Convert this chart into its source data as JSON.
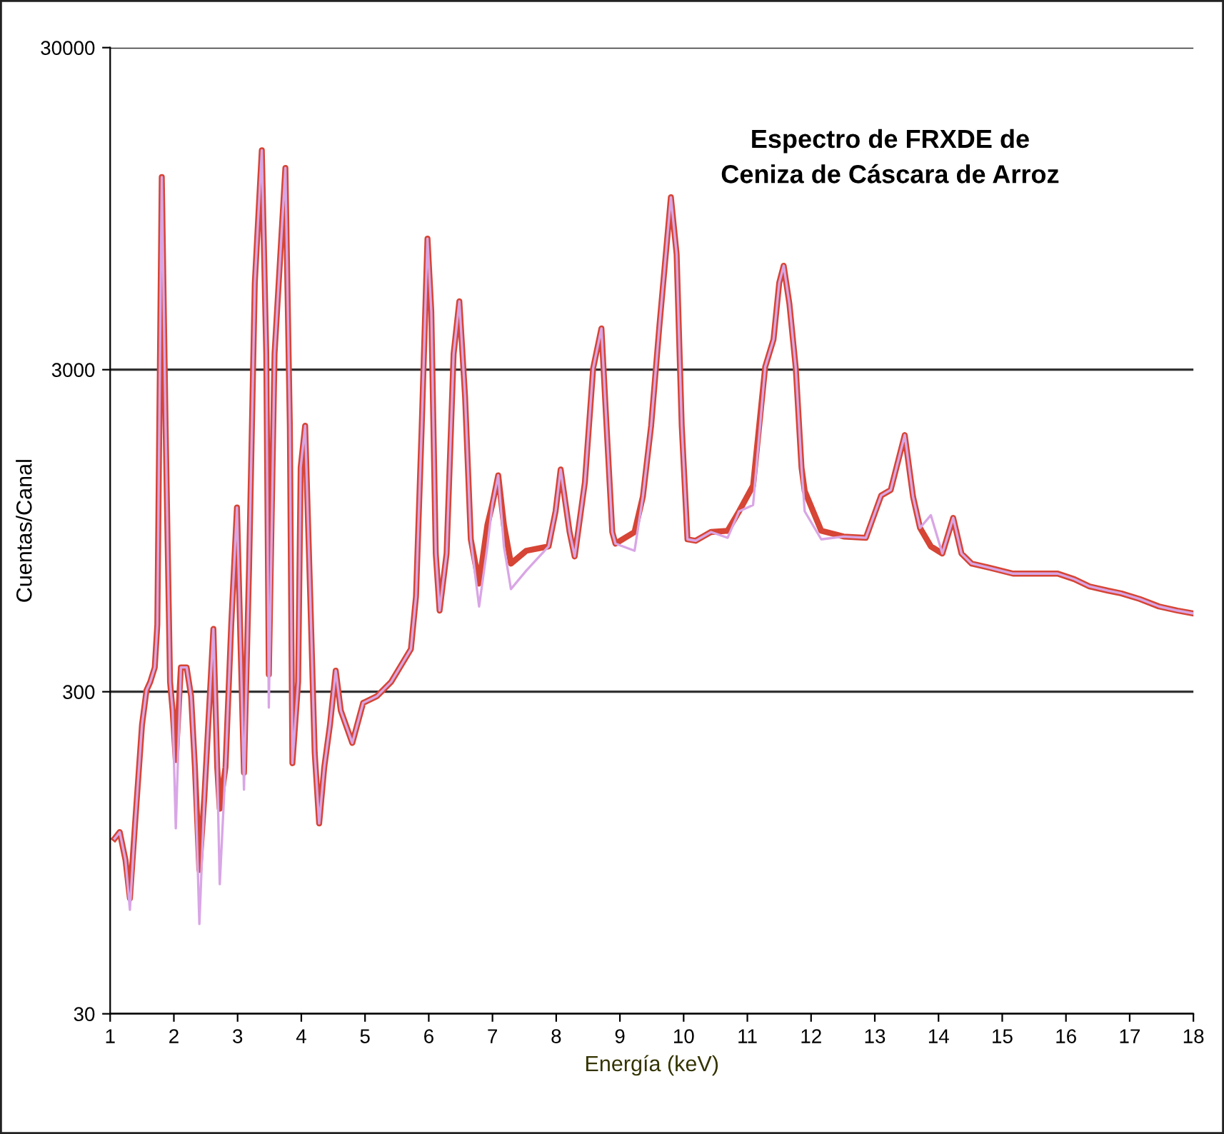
{
  "chart_data": {
    "type": "line",
    "title": "Espectro de FRXDE de\nCeniza de Cáscara de Arroz",
    "xlabel": "Energía (keV)",
    "ylabel": "Cuentas/Canal",
    "log": "y",
    "xlim": [
      1,
      18
    ],
    "xticks": [
      1,
      2,
      3,
      4,
      5,
      6,
      7,
      8,
      9,
      10,
      11,
      12,
      13,
      14,
      15,
      16,
      17,
      18
    ],
    "ylim": [
      30,
      30000
    ],
    "yticks": [
      30,
      300,
      3000,
      30000
    ],
    "grid": "y",
    "marker": "none",
    "line_style": "solid",
    "series": [
      {
        "color": "#d9a6e6",
        "x": [
          1.07,
          1.15,
          1.24,
          1.31,
          1.39,
          1.5,
          1.57,
          1.63,
          1.7,
          1.74,
          1.81,
          1.87,
          1.94,
          1.98,
          2.03,
          2.11,
          2.2,
          2.27,
          2.33,
          2.4,
          2.48,
          2.62,
          2.68,
          2.72,
          2.81,
          2.9,
          2.99,
          3.05,
          3.1,
          3.18,
          3.27,
          3.38,
          3.45,
          3.49,
          3.58,
          3.75,
          3.82,
          3.86,
          3.95,
          3.99,
          4.06,
          4.14,
          4.21,
          4.28,
          4.36,
          4.45,
          4.54,
          4.62,
          4.8,
          4.97,
          5.19,
          5.41,
          5.72,
          5.8,
          5.89,
          5.98,
          6.04,
          6.11,
          6.17,
          6.28,
          6.39,
          6.48,
          6.57,
          6.66,
          6.79,
          6.92,
          7.0,
          7.09,
          7.18,
          7.29,
          7.53,
          7.88,
          7.99,
          8.07,
          8.21,
          8.29,
          8.45,
          8.58,
          8.71,
          8.79,
          8.88,
          8.93,
          9.23,
          9.36,
          9.49,
          9.62,
          9.8,
          9.89,
          9.97,
          10.06,
          10.19,
          10.43,
          10.69,
          10.87,
          11.09,
          11.28,
          11.41,
          11.5,
          11.57,
          11.66,
          11.76,
          11.85,
          11.9,
          12.16,
          12.51,
          12.86,
          13.1,
          13.25,
          13.47,
          13.6,
          13.71,
          13.88,
          14.06,
          14.23,
          14.36,
          14.52,
          14.8,
          15.17,
          15.52,
          15.87,
          16.13,
          16.37,
          16.66,
          16.87,
          17.16,
          17.46,
          17.75,
          18.0
        ],
        "values": [
          105,
          110,
          90.2,
          63.1,
          116,
          237,
          303,
          322,
          357,
          484,
          11900,
          2010,
          322,
          262,
          113,
          357,
          357,
          291,
          175,
          57.0,
          143,
          470,
          175,
          75.8,
          175,
          484,
          1120,
          395,
          149,
          728,
          5580,
          14400,
          3360,
          268,
          3360,
          12700,
          2010,
          180,
          322,
          1490,
          2010,
          593,
          194,
          117,
          175,
          237,
          349,
          262,
          208,
          277,
          291,
          322,
          407,
          593,
          2010,
          7660,
          4550,
          806,
          536,
          806,
          3360,
          4890,
          2470,
          892,
          552,
          848,
          1150,
          1410,
          848,
          625,
          713,
          848,
          1090,
          1470,
          940,
          789,
          1340,
          3030,
          4030,
          2010,
          940,
          865,
          822,
          1210,
          2010,
          4110,
          10300,
          6850,
          2010,
          892,
          883,
          940,
          902,
          1090,
          1140,
          3060,
          3720,
          5580,
          6310,
          4800,
          3030,
          1490,
          1090,
          892,
          910,
          902,
          1220,
          1270,
          1880,
          1210,
          968,
          1060,
          806,
          1040,
          806,
          750,
          728,
          698,
          698,
          698,
          671,
          637,
          618,
          606,
          582,
          552,
          536,
          525
        ]
      },
      {
        "color": "#d64535",
        "x": [
          1.07,
          1.15,
          1.24,
          1.31,
          1.39,
          1.5,
          1.57,
          1.63,
          1.7,
          1.74,
          1.81,
          1.87,
          1.94,
          1.98,
          2.03,
          2.11,
          2.2,
          2.27,
          2.33,
          2.4,
          2.48,
          2.62,
          2.68,
          2.72,
          2.81,
          2.9,
          2.99,
          3.05,
          3.1,
          3.18,
          3.27,
          3.38,
          3.45,
          3.49,
          3.58,
          3.75,
          3.82,
          3.86,
          3.95,
          3.99,
          4.06,
          4.14,
          4.21,
          4.28,
          4.36,
          4.45,
          4.54,
          4.62,
          4.8,
          4.97,
          5.19,
          5.41,
          5.72,
          5.8,
          5.89,
          5.98,
          6.04,
          6.11,
          6.17,
          6.28,
          6.39,
          6.48,
          6.57,
          6.66,
          6.79,
          6.92,
          7.0,
          7.09,
          7.18,
          7.29,
          7.53,
          7.88,
          7.99,
          8.07,
          8.21,
          8.29,
          8.45,
          8.58,
          8.71,
          8.79,
          8.88,
          8.93,
          9.23,
          9.36,
          9.49,
          9.62,
          9.8,
          9.89,
          9.97,
          10.06,
          10.19,
          10.43,
          10.69,
          10.87,
          11.09,
          11.28,
          11.41,
          11.5,
          11.57,
          11.66,
          11.76,
          11.85,
          11.9,
          12.16,
          12.51,
          12.86,
          13.1,
          13.25,
          13.47,
          13.6,
          13.71,
          13.88,
          14.06,
          14.23,
          14.36,
          14.52,
          14.8,
          15.17,
          15.52,
          15.87,
          16.13,
          16.37,
          16.66,
          16.87,
          17.16,
          17.46,
          17.75,
          18.0
        ],
        "values": [
          105,
          110,
          90.2,
          68.4,
          116,
          237,
          303,
          322,
          357,
          484,
          11900,
          2010,
          322,
          262,
          184,
          357,
          357,
          291,
          175,
          83.9,
          143,
          470,
          175,
          130,
          175,
          484,
          1120,
          395,
          168,
          728,
          5580,
          14400,
          3360,
          339,
          3360,
          12700,
          2010,
          180,
          322,
          1490,
          2010,
          593,
          194,
          117,
          175,
          237,
          349,
          262,
          208,
          277,
          291,
          322,
          407,
          593,
          2010,
          7660,
          4550,
          806,
          536,
          806,
          3360,
          4890,
          2470,
          892,
          650,
          988,
          1150,
          1410,
          988,
          750,
          822,
          848,
          1090,
          1470,
          940,
          789,
          1340,
          3030,
          4030,
          2010,
          940,
          865,
          940,
          1210,
          2010,
          4110,
          10300,
          6850,
          2010,
          892,
          883,
          940,
          948,
          1090,
          1310,
          3060,
          3720,
          5580,
          6310,
          4800,
          3030,
          1490,
          1260,
          948,
          910,
          902,
          1220,
          1270,
          1880,
          1210,
          968,
          848,
          806,
          1040,
          806,
          750,
          728,
          698,
          698,
          698,
          671,
          637,
          618,
          606,
          582,
          552,
          536,
          525
        ]
      }
    ]
  }
}
